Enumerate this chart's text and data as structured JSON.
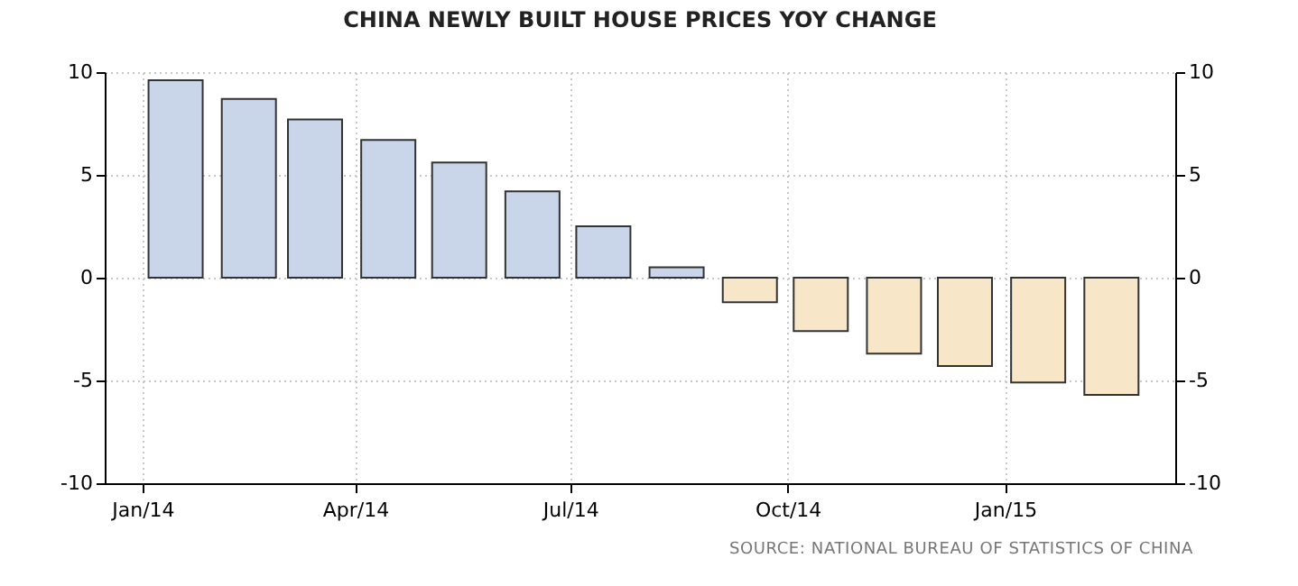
{
  "chart_data": {
    "type": "bar",
    "title": "CHINA NEWLY BUILT HOUSE PRICES YOY CHANGE",
    "x": [
      "2014-01-15",
      "2014-02-15",
      "2014-03-15",
      "2014-04-15",
      "2014-05-15",
      "2014-06-15",
      "2014-07-15",
      "2014-08-15",
      "2014-09-15",
      "2014-10-15",
      "2014-11-15",
      "2014-12-15",
      "2015-01-15",
      "2015-02-15"
    ],
    "values": [
      9.6,
      8.7,
      7.7,
      6.7,
      5.6,
      4.2,
      2.5,
      0.5,
      -1.2,
      -2.6,
      -3.7,
      -4.3,
      -5.1,
      -5.7
    ],
    "colors": [
      "#c9d6ea",
      "#c9d6ea",
      "#c9d6ea",
      "#c9d6ea",
      "#c9d6ea",
      "#c9d6ea",
      "#c9d6ea",
      "#c9d6ea",
      "#f8e6c8",
      "#f8e6c8",
      "#f8e6c8",
      "#f8e6c8",
      "#f8e6c8",
      "#f8e6c8"
    ],
    "xlim": [
      "2013-12-16",
      "2015-03-14"
    ],
    "xticks": [
      {
        "value": "2014-01",
        "label": "Jan/14"
      },
      {
        "value": "2014-04",
        "label": "Apr/14"
      },
      {
        "value": "2014-07",
        "label": "Jul/14"
      },
      {
        "value": "2014-10",
        "label": "Oct/14"
      },
      {
        "value": "2015-01",
        "label": "Jan/15"
      }
    ],
    "ylim": [
      -10,
      10
    ],
    "yticks": [
      -10,
      -5,
      0,
      5,
      10
    ],
    "y2lim": [
      -10,
      10
    ],
    "y2ticks": [
      -10,
      -5,
      0,
      5,
      10
    ],
    "grid": true,
    "annotations": [
      "SOURCE: NATIONAL BUREAU OF STATISTICS OF CHINA"
    ]
  }
}
